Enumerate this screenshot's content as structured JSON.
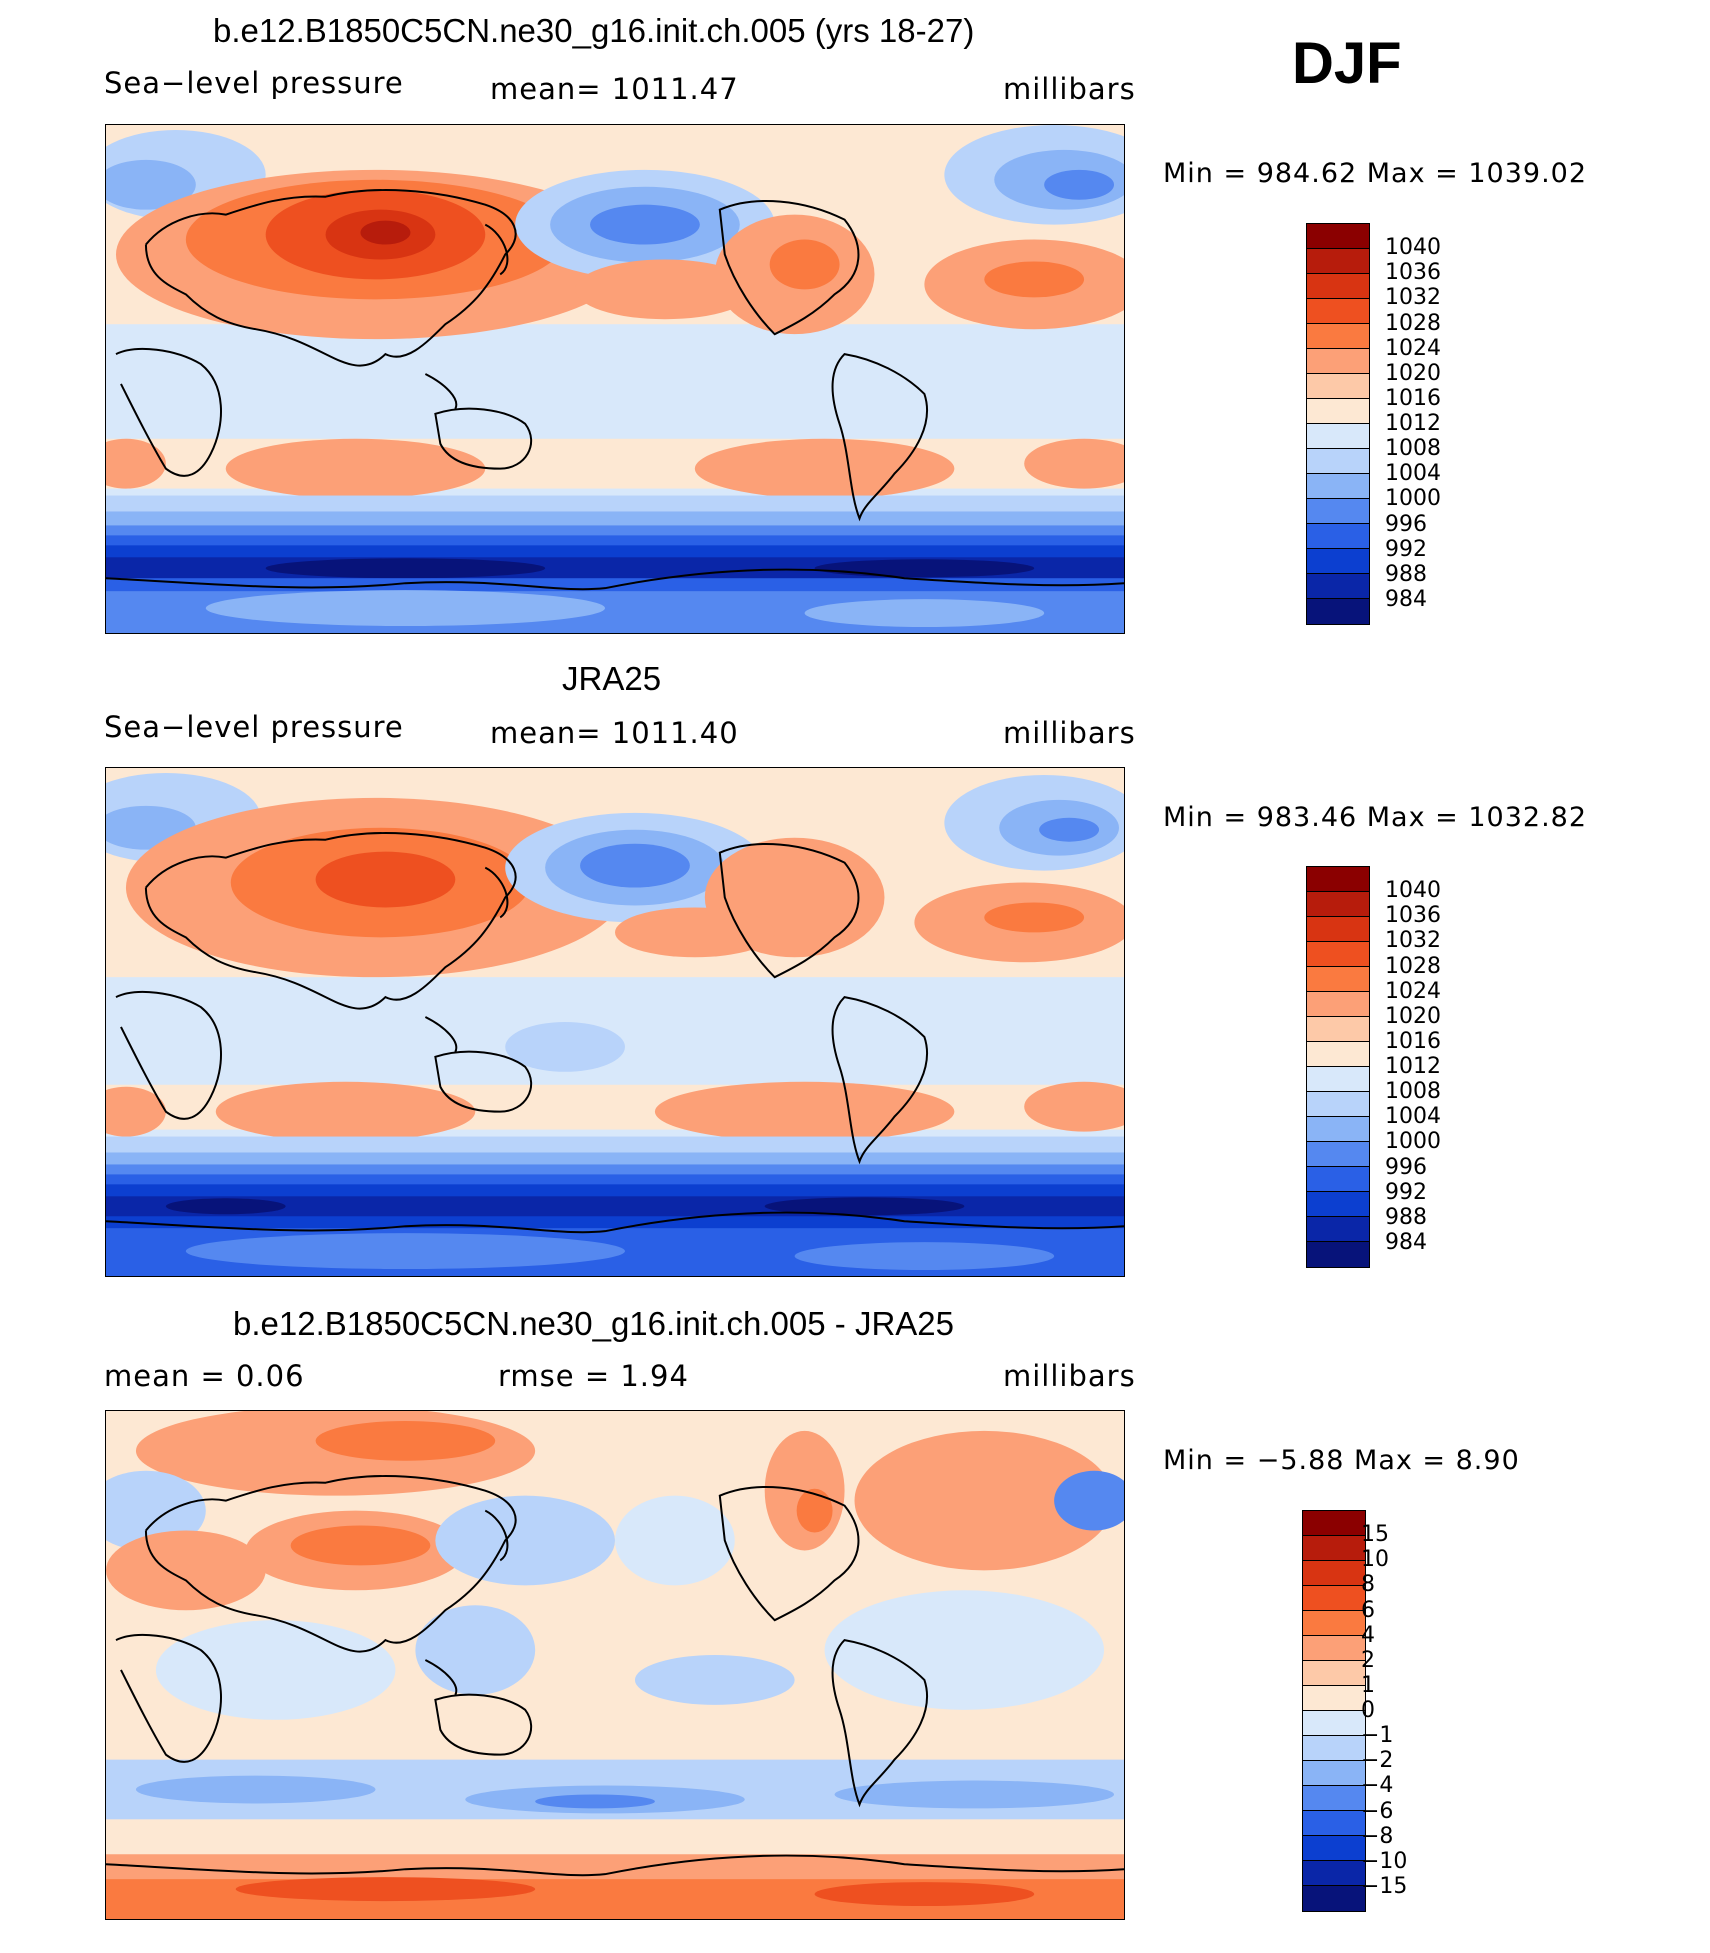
{
  "season": "DJF",
  "panels": [
    {
      "title": "b.e12.B1850C5CN.ne30_g16.init.ch.005 (yrs 18-27)",
      "left_label": "Sea−level pressure",
      "center_label": "mean=  1011.47",
      "right_label": "millibars",
      "minmax": "Min  =  984.62  Max  =  1039.02",
      "colorbar": {
        "labels": [
          "1040",
          "1036",
          "1032",
          "1028",
          "1024",
          "1020",
          "1016",
          "1012",
          "1008",
          "1004",
          "1000",
          "996",
          "992",
          "988",
          "984"
        ],
        "colors": [
          "#8b0000",
          "#b71c0c",
          "#d83412",
          "#ee5020",
          "#fa7a40",
          "#fca077",
          "#fdc9a8",
          "#fde8d3",
          "#d8e8fa",
          "#b8d3fa",
          "#8ab4f6",
          "#5588f0",
          "#2a60e6",
          "#0c3fd0",
          "#0a26a8",
          "#07137a"
        ]
      },
      "map_style": "model"
    },
    {
      "title": "JRA25",
      "left_label": "Sea−level pressure",
      "center_label": "mean=  1011.40",
      "right_label": "millibars",
      "minmax": "Min  =  983.46  Max  =  1032.82",
      "colorbar": {
        "labels": [
          "1040",
          "1036",
          "1032",
          "1028",
          "1024",
          "1020",
          "1016",
          "1012",
          "1008",
          "1004",
          "1000",
          "996",
          "992",
          "988",
          "984"
        ],
        "colors": [
          "#8b0000",
          "#b71c0c",
          "#d83412",
          "#ee5020",
          "#fa7a40",
          "#fca077",
          "#fdc9a8",
          "#fde8d3",
          "#d8e8fa",
          "#b8d3fa",
          "#8ab4f6",
          "#5588f0",
          "#2a60e6",
          "#0c3fd0",
          "#0a26a8",
          "#07137a"
        ]
      },
      "map_style": "obs"
    },
    {
      "title": "b.e12.B1850C5CN.ne30_g16.init.ch.005 - JRA25",
      "left_label": "mean  =     0.06",
      "center_label": "rmse  =     1.94",
      "right_label": "millibars",
      "minmax": "Min  =    −5.88  Max  =     8.90",
      "colorbar": {
        "labels": [
          "15",
          "10",
          "8",
          "6",
          "4",
          "2",
          "1",
          "0",
          "−1",
          "−2",
          "−4",
          "−6",
          "−8",
          "−10",
          "−15"
        ],
        "colors": [
          "#8b0000",
          "#b71c0c",
          "#d83412",
          "#ee5020",
          "#fa7a40",
          "#fca077",
          "#fdc9a8",
          "#fde8d3",
          "#d8e8fa",
          "#b8d3fa",
          "#8ab4f6",
          "#5588f0",
          "#2a60e6",
          "#0c3fd0",
          "#0a26a8",
          "#07137a"
        ]
      },
      "map_style": "diff"
    }
  ]
}
